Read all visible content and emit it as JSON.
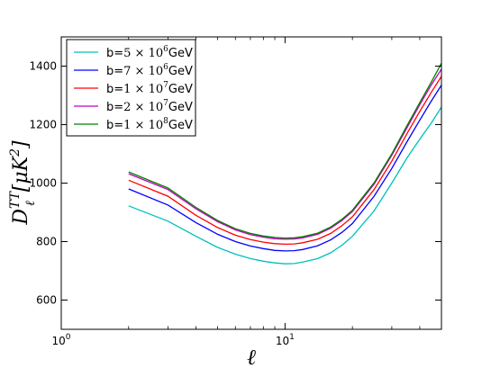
{
  "chart_data": {
    "type": "line",
    "xlabel": "ℓ",
    "ylabel_main": "D",
    "ylabel_sub": "ℓ",
    "ylabel_sup": "TT",
    "ylabel_unit": "[μK",
    "ylabel_unit_sup": "2",
    "ylabel_unit_close": "]",
    "x_scale": "log",
    "xlim": [
      1,
      50
    ],
    "ylim": [
      500,
      1500
    ],
    "x_ticks": [
      {
        "value": 1,
        "base": "10",
        "exp": "0"
      },
      {
        "value": 10,
        "base": "10",
        "exp": "1"
      }
    ],
    "y_ticks": [
      {
        "value": 600,
        "label": "600"
      },
      {
        "value": 800,
        "label": "800"
      },
      {
        "value": 1000,
        "label": "1000"
      },
      {
        "value": 1200,
        "label": "1200"
      },
      {
        "value": 1400,
        "label": "1400"
      }
    ],
    "grid": false,
    "legend_position": "top-left",
    "x": [
      2,
      3,
      4,
      5,
      6,
      7,
      8,
      9,
      10,
      11,
      12,
      14,
      16,
      18,
      20,
      25,
      30,
      35,
      40,
      45,
      50
    ],
    "series": [
      {
        "name_prefix": "b=",
        "name_mantissa": "5 × 10",
        "name_exp": "6",
        "name_suffix": "GeV",
        "color": "#00bfbf",
        "values": [
          922,
          870,
          818,
          780,
          757,
          742,
          733,
          727,
          724,
          725,
          730,
          742,
          762,
          788,
          818,
          905,
          1000,
          1085,
          1150,
          1205,
          1260
        ]
      },
      {
        "name_prefix": "b=",
        "name_mantissa": "7 × 10",
        "name_exp": "6",
        "name_suffix": "GeV",
        "color": "#0000ff",
        "values": [
          980,
          925,
          865,
          825,
          800,
          785,
          776,
          770,
          768,
          769,
          773,
          786,
          806,
          832,
          862,
          955,
          1050,
          1140,
          1215,
          1280,
          1335
        ]
      },
      {
        "name_prefix": "b=",
        "name_mantissa": "1 × 10",
        "name_exp": "7",
        "name_suffix": "GeV",
        "color": "#ff0000",
        "values": [
          1010,
          955,
          890,
          848,
          822,
          807,
          798,
          793,
          791,
          792,
          796,
          808,
          828,
          855,
          885,
          978,
          1075,
          1168,
          1245,
          1310,
          1365
        ]
      },
      {
        "name_prefix": "b=",
        "name_mantissa": "2 × 10",
        "name_exp": "7",
        "name_suffix": "GeV",
        "color": "#bf00bf",
        "values": [
          1032,
          978,
          912,
          868,
          840,
          824,
          815,
          810,
          808,
          809,
          813,
          825,
          846,
          873,
          903,
          996,
          1095,
          1188,
          1268,
          1335,
          1390
        ]
      },
      {
        "name_prefix": "b=",
        "name_mantissa": "1 × 10",
        "name_exp": "8",
        "name_suffix": "GeV",
        "color": "#008000",
        "values": [
          1038,
          983,
          917,
          872,
          844,
          828,
          819,
          814,
          812,
          813,
          817,
          829,
          850,
          877,
          907,
          1001,
          1100,
          1195,
          1275,
          1345,
          1410
        ]
      }
    ]
  }
}
